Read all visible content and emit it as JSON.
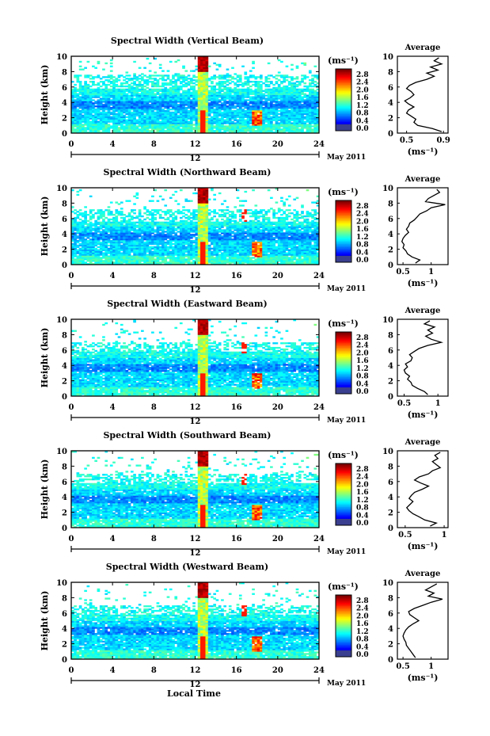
{
  "figure": {
    "x_axis_title": "Local Time",
    "date_label": "May 2011",
    "date_tick_label": "12",
    "colorbar_unit": "(ms⁻¹)",
    "colorbar_ticks": [
      "2.8",
      "2.4",
      "2.0",
      "1.6",
      "1.2",
      "0.8",
      "0.4",
      "0.0"
    ],
    "average_title": "Average",
    "average_unit": "(ms⁻¹)",
    "height_label": "Height (km)"
  },
  "chart_data": [
    {
      "type": "heatmap",
      "title": "Spectral Width (Vertical Beam)",
      "xlabel": "",
      "ylabel": "Height (km)",
      "xlim": [
        0,
        24
      ],
      "ylim": [
        0,
        10
      ],
      "x_ticks": [
        0,
        4,
        8,
        12,
        16,
        20,
        24
      ],
      "y_ticks": [
        0,
        2,
        4,
        6,
        8,
        10
      ],
      "colorbar": {
        "label": "(ms⁻¹)",
        "range": [
          0.0,
          2.8
        ],
        "colormap": "jet"
      },
      "average_profile": {
        "title": "Average",
        "xlabel": "(ms⁻¹)",
        "xlim": [
          0.4,
          0.95
        ],
        "x_ticks": [
          0.5,
          0.9
        ],
        "ylim": [
          0,
          10
        ],
        "height": [
          0.2,
          0.6,
          1.0,
          1.4,
          1.8,
          2.2,
          2.6,
          3.0,
          3.4,
          3.8,
          4.2,
          4.6,
          5.0,
          5.4,
          5.8,
          6.2,
          6.6,
          7.0,
          7.4,
          7.8,
          8.2,
          8.6,
          9.0,
          9.4,
          9.8
        ],
        "values": [
          0.88,
          0.78,
          0.62,
          0.58,
          0.6,
          0.55,
          0.5,
          0.52,
          0.58,
          0.52,
          0.48,
          0.54,
          0.58,
          0.55,
          0.5,
          0.53,
          0.6,
          0.72,
          0.8,
          0.72,
          0.84,
          0.76,
          0.88,
          0.8,
          0.85
        ]
      }
    },
    {
      "type": "heatmap",
      "title": "Spectral Width (Northward Beam)",
      "xlabel": "",
      "ylabel": "Height (km)",
      "xlim": [
        0,
        24
      ],
      "ylim": [
        0,
        10
      ],
      "x_ticks": [
        0,
        4,
        8,
        12,
        16,
        20,
        24
      ],
      "y_ticks": [
        0,
        2,
        4,
        6,
        8,
        10
      ],
      "colorbar": {
        "label": "(ms⁻¹)",
        "range": [
          0.0,
          2.8
        ],
        "colormap": "jet"
      },
      "average_profile": {
        "title": "Average",
        "xlabel": "(ms⁻¹)",
        "xlim": [
          0.4,
          1.3
        ],
        "x_ticks": [
          0.5,
          1.0
        ],
        "ylim": [
          0,
          10
        ],
        "height": [
          0.2,
          0.6,
          1.0,
          1.4,
          1.8,
          2.2,
          2.6,
          3.0,
          3.4,
          3.8,
          4.2,
          4.6,
          5.0,
          5.4,
          5.8,
          6.2,
          6.6,
          7.0,
          7.4,
          7.8,
          8.2,
          8.6,
          9.0,
          9.4,
          9.8
        ],
        "values": [
          0.72,
          0.8,
          0.66,
          0.58,
          0.55,
          0.5,
          0.52,
          0.48,
          0.5,
          0.54,
          0.6,
          0.56,
          0.6,
          0.62,
          0.7,
          0.75,
          0.8,
          0.92,
          1.0,
          1.25,
          0.9,
          0.95,
          1.05,
          1.15,
          1.1
        ]
      }
    },
    {
      "type": "heatmap",
      "title": "Spectral Width (Eastward Beam)",
      "xlabel": "",
      "ylabel": "Height (km)",
      "xlim": [
        0,
        24
      ],
      "ylim": [
        0,
        10
      ],
      "x_ticks": [
        0,
        4,
        8,
        12,
        16,
        20,
        24
      ],
      "y_ticks": [
        0,
        2,
        4,
        6,
        8,
        10
      ],
      "colorbar": {
        "label": "(ms⁻¹)",
        "range": [
          0.0,
          2.8
        ],
        "colormap": "jet"
      },
      "average_profile": {
        "title": "Average",
        "xlabel": "(ms⁻¹)",
        "xlim": [
          0.4,
          1.15
        ],
        "x_ticks": [
          0.5,
          1.0
        ],
        "ylim": [
          0,
          10
        ],
        "height": [
          0.2,
          0.6,
          1.0,
          1.4,
          1.8,
          2.2,
          2.6,
          3.0,
          3.4,
          3.8,
          4.2,
          4.6,
          5.0,
          5.4,
          5.8,
          6.2,
          6.6,
          7.0,
          7.4,
          7.8,
          8.2,
          8.6,
          9.0,
          9.4,
          9.8
        ],
        "values": [
          0.85,
          0.8,
          0.7,
          0.62,
          0.6,
          0.55,
          0.58,
          0.52,
          0.5,
          0.55,
          0.52,
          0.6,
          0.62,
          0.58,
          0.65,
          0.72,
          0.85,
          1.05,
          0.9,
          0.82,
          0.92,
          0.85,
          0.95,
          0.8,
          0.88
        ]
      }
    },
    {
      "type": "heatmap",
      "title": "Spectral Width (Southward Beam)",
      "xlabel": "",
      "ylabel": "Height (km)",
      "xlim": [
        0,
        24
      ],
      "ylim": [
        0,
        10
      ],
      "x_ticks": [
        0,
        4,
        8,
        12,
        16,
        20,
        24
      ],
      "y_ticks": [
        0,
        2,
        4,
        6,
        8,
        10
      ],
      "colorbar": {
        "label": "(ms⁻¹)",
        "range": [
          0.0,
          2.8
        ],
        "colormap": "jet"
      },
      "average_profile": {
        "title": "Average",
        "xlabel": "(ms⁻¹)",
        "xlim": [
          0.4,
          1.05
        ],
        "x_ticks": [
          0.5,
          1.0
        ],
        "ylim": [
          0,
          10
        ],
        "height": [
          0.2,
          0.6,
          1.0,
          1.4,
          1.8,
          2.2,
          2.6,
          3.0,
          3.4,
          3.8,
          4.2,
          4.6,
          5.0,
          5.4,
          5.8,
          6.2,
          6.6,
          7.0,
          7.4,
          7.8,
          8.2,
          8.6,
          9.0,
          9.4,
          9.8
        ],
        "values": [
          0.82,
          0.9,
          0.75,
          0.68,
          0.6,
          0.55,
          0.52,
          0.56,
          0.6,
          0.55,
          0.58,
          0.62,
          0.72,
          0.8,
          0.7,
          0.62,
          0.68,
          0.8,
          0.85,
          0.95,
          0.9,
          0.85,
          0.92,
          0.88,
          0.95
        ]
      }
    },
    {
      "type": "heatmap",
      "title": "Spectral Width (Westward Beam)",
      "xlabel": "Local Time",
      "ylabel": "Height (km)",
      "xlim": [
        0,
        24
      ],
      "ylim": [
        0,
        10
      ],
      "x_ticks": [
        0,
        4,
        8,
        12,
        16,
        20,
        24
      ],
      "y_ticks": [
        0,
        2,
        4,
        6,
        8,
        10
      ],
      "colorbar": {
        "label": "(ms⁻¹)",
        "range": [
          0.0,
          2.8
        ],
        "colormap": "jet"
      },
      "average_profile": {
        "title": "Average",
        "xlabel": "(ms⁻¹)",
        "xlim": [
          0.4,
          1.3
        ],
        "x_ticks": [
          0.5,
          1.0
        ],
        "ylim": [
          0,
          10
        ],
        "height": [
          0.2,
          0.6,
          1.0,
          1.4,
          1.8,
          2.2,
          2.6,
          3.0,
          3.4,
          3.8,
          4.2,
          4.6,
          5.0,
          5.4,
          5.8,
          6.2,
          6.6,
          7.0,
          7.4,
          7.8,
          8.2,
          8.6,
          9.0,
          9.4,
          9.8
        ],
        "values": [
          0.72,
          0.68,
          0.64,
          0.6,
          0.56,
          0.55,
          0.52,
          0.5,
          0.52,
          0.55,
          0.6,
          0.68,
          0.78,
          0.7,
          0.62,
          0.6,
          0.7,
          0.85,
          1.0,
          1.2,
          0.95,
          1.05,
          0.9,
          1.0,
          1.1
        ]
      }
    }
  ]
}
